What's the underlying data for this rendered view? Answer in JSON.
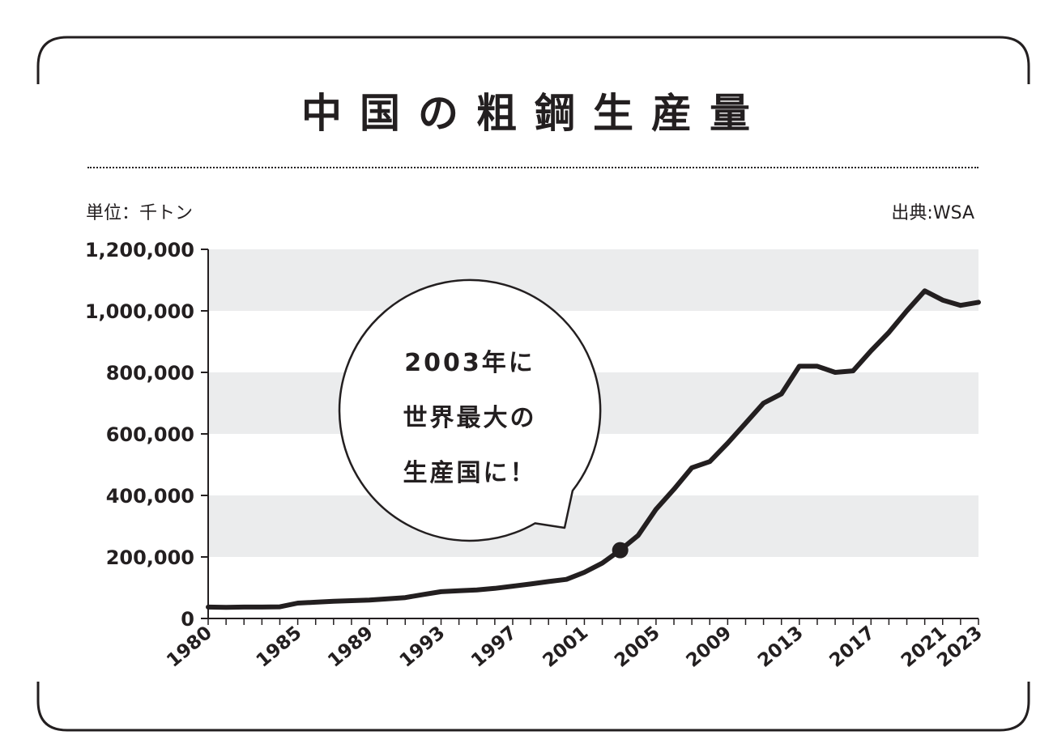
{
  "colors": {
    "ink": "#231f20",
    "band": "#ebeced",
    "background": "#ffffff"
  },
  "header": {
    "unit_label": "単位：千トン",
    "source_label": "出典:WSA"
  },
  "annotation": {
    "lines": [
      "2003年に",
      "世界最大の",
      "生産国に！"
    ],
    "marker_year": 2003
  },
  "chart_data": {
    "type": "line",
    "title": "中国の粗鋼生産量",
    "xlabel": "",
    "ylabel": "",
    "xlim": [
      1980,
      2023
    ],
    "ylim": [
      0,
      1200000
    ],
    "yticks": [
      0,
      200000,
      400000,
      600000,
      800000,
      1000000,
      1200000
    ],
    "ytick_labels": [
      "0",
      "200,000",
      "400,000",
      "600,000",
      "800,000",
      "1,000,000",
      "1,200,000"
    ],
    "xtick_labels": [
      "1980",
      "1985",
      "1989",
      "1993",
      "1997",
      "2001",
      "2005",
      "2009",
      "2013",
      "2017",
      "2021",
      "2023"
    ],
    "grid": "alternating horizontal bands",
    "series": [
      {
        "x": [
          1980,
          1981,
          1982,
          1983,
          1984,
          1985,
          1986,
          1987,
          1988,
          1989,
          1990,
          1991,
          1992,
          1993,
          1994,
          1995,
          1996,
          1997,
          1998,
          1999,
          2000,
          2001,
          2002,
          2003,
          2004,
          2005,
          2006,
          2007,
          2008,
          2009,
          2010,
          2011,
          2012,
          2013,
          2014,
          2015,
          2016,
          2017,
          2018,
          2019,
          2020,
          2021,
          2022,
          2023
        ],
        "values": [
          37000,
          36000,
          37000,
          37000,
          38000,
          50000,
          53000,
          56000,
          58000,
          60000,
          64000,
          68000,
          78000,
          87000,
          90000,
          93000,
          98000,
          105000,
          112000,
          120000,
          127000,
          150000,
          180000,
          222000,
          270000,
          355000,
          420000,
          490000,
          510000,
          570000,
          635000,
          700000,
          730000,
          820000,
          820000,
          800000,
          805000,
          870000,
          930000,
          1000000,
          1065000,
          1035000,
          1018000,
          1028000
        ]
      }
    ]
  }
}
